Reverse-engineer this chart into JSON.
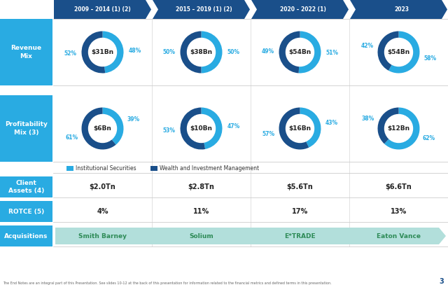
{
  "header_labels": [
    "2009 – 2014 (1) (2)",
    "2015 – 2019 (1) (2)",
    "2020 – 2022 (1)",
    "2023"
  ],
  "header_color": "#1a4f8a",
  "header_text_color": "#ffffff",
  "row_label_color": "#29abe2",
  "row_label_text_color": "#ffffff",
  "revenue_mix": {
    "label": "Revenue\nMix",
    "amounts": [
      "$31Bn",
      "$38Bn",
      "$54Bn",
      "$54Bn"
    ],
    "pct_light": [
      48,
      50,
      51,
      58
    ],
    "pct_dark": [
      52,
      50,
      49,
      42
    ],
    "light_color": "#29abe2",
    "dark_color": "#1a4f8a"
  },
  "profitability_mix": {
    "label": "Profitability\nMix (3)",
    "amounts": [
      "$6Bn",
      "$10Bn",
      "$16Bn",
      "$12Bn"
    ],
    "pct_light": [
      39,
      47,
      43,
      62
    ],
    "pct_dark": [
      61,
      53,
      57,
      38
    ],
    "light_color": "#29abe2",
    "dark_color": "#1a4f8a"
  },
  "legend": {
    "light_label": "Institutional Securities",
    "dark_label": "Wealth and Investment Management",
    "light_color": "#29abe2",
    "dark_color": "#1a4f8a"
  },
  "client_assets": {
    "label": "Client\nAssets (4)",
    "values": [
      "$2.0Tn",
      "$2.8Tn",
      "$5.6Tn",
      "$6.6Tn"
    ]
  },
  "rotce": {
    "label": "ROTCE (5)",
    "values": [
      "4%",
      "11%",
      "17%",
      "13%"
    ]
  },
  "acquisitions": {
    "label": "Acquisitions",
    "values": [
      "Smith Barney",
      "Solium",
      "E*TRADE",
      "Eaton Vance"
    ],
    "arrow_color": "#b2dfdb",
    "text_color": "#2e8b57"
  },
  "footnote": "The End Notes are an integral part of this Presentation. See slides 10-12 at the back of this presentation for information related to the financial metrics and defined terms in this presentation.",
  "bg_color": "#ffffff",
  "grid_line_color": "#cccccc",
  "page_number": "3"
}
